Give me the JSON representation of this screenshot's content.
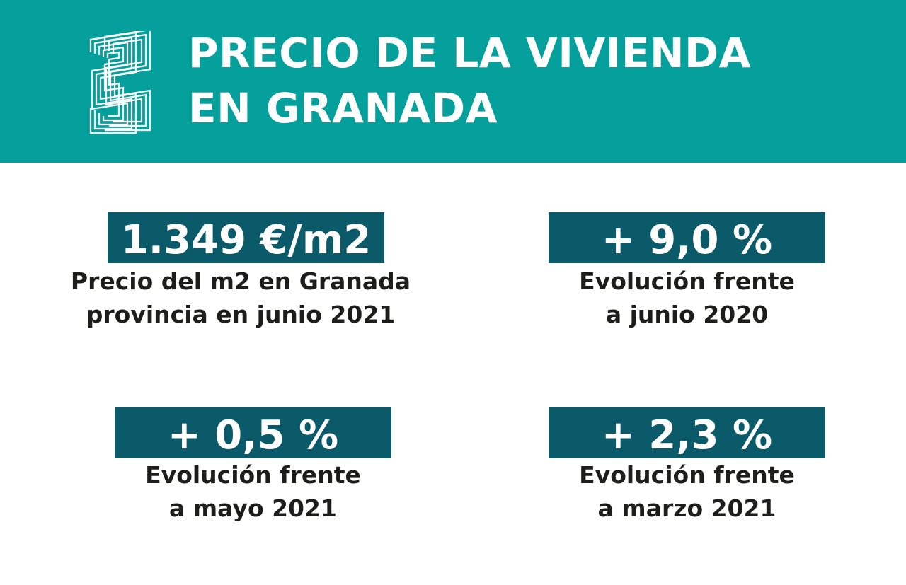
{
  "header": {
    "title_line1": "PRECIO DE LA VIVIENDA",
    "title_line2": "EN GRANADA",
    "logo_icon": "maze-logo-icon",
    "background_color": "#05a09c"
  },
  "stats": [
    {
      "value": "1.349 €/m2",
      "caption_line1": "Precio del m2 en Granada",
      "caption_line2": "provincia en junio 2021"
    },
    {
      "value": "+ 9,0 %",
      "caption_line1": "Evolución frente",
      "caption_line2": "a junio 2020"
    },
    {
      "value": "+ 0,5 %",
      "caption_line1": "Evolución frente",
      "caption_line2": "a mayo 2021"
    },
    {
      "value": "+ 2,3 %",
      "caption_line1": "Evolución frente",
      "caption_line2": "a marzo 2021"
    }
  ],
  "colors": {
    "accent_box": "#0b5a6a",
    "text_dark": "#1d1d1b",
    "text_light": "#ffffff"
  }
}
